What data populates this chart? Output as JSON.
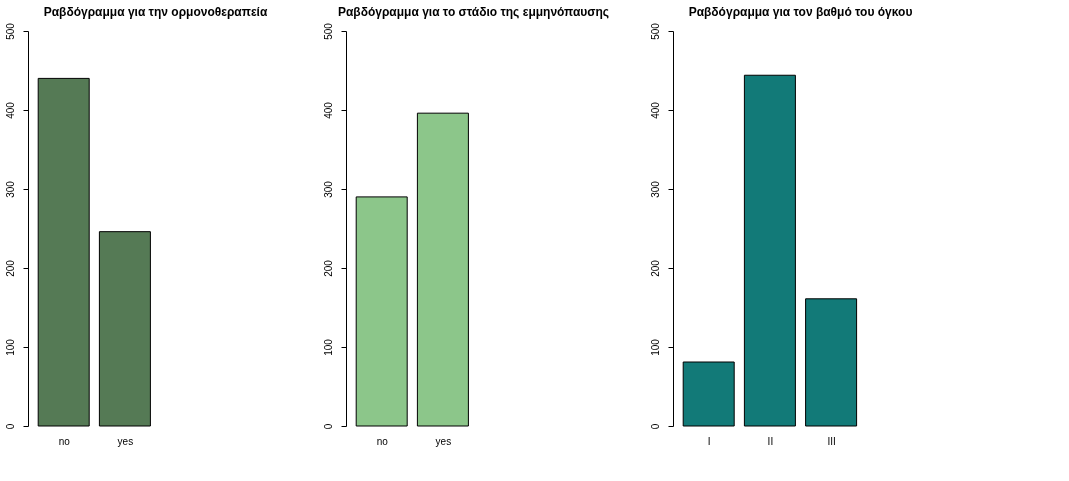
{
  "chart_data": [
    {
      "type": "bar",
      "title": "Ραβδόγραμμα για την ορμονοθεραπεία",
      "categories": [
        "no",
        "yes"
      ],
      "values": [
        440,
        246
      ],
      "color": "#557a55",
      "ylim": [
        0,
        500
      ],
      "yticks": [
        0,
        100,
        200,
        300,
        400,
        500
      ]
    },
    {
      "type": "bar",
      "title": "Ραβδόγραμμα για το στάδιο της εμμηνόπαυσης",
      "categories": [
        "no",
        "yes"
      ],
      "values": [
        290,
        396
      ],
      "color": "#8cc68a",
      "ylim": [
        0,
        500
      ],
      "yticks": [
        0,
        100,
        200,
        300,
        400,
        500
      ]
    },
    {
      "type": "bar",
      "title": "Ραβδόγραμμα για τον βαθμό του όγκου",
      "categories": [
        "I",
        "II",
        "III"
      ],
      "values": [
        81,
        444,
        161
      ],
      "color": "#127a78",
      "ylim": [
        0,
        500
      ],
      "yticks": [
        0,
        100,
        200,
        300,
        400,
        500
      ]
    }
  ]
}
